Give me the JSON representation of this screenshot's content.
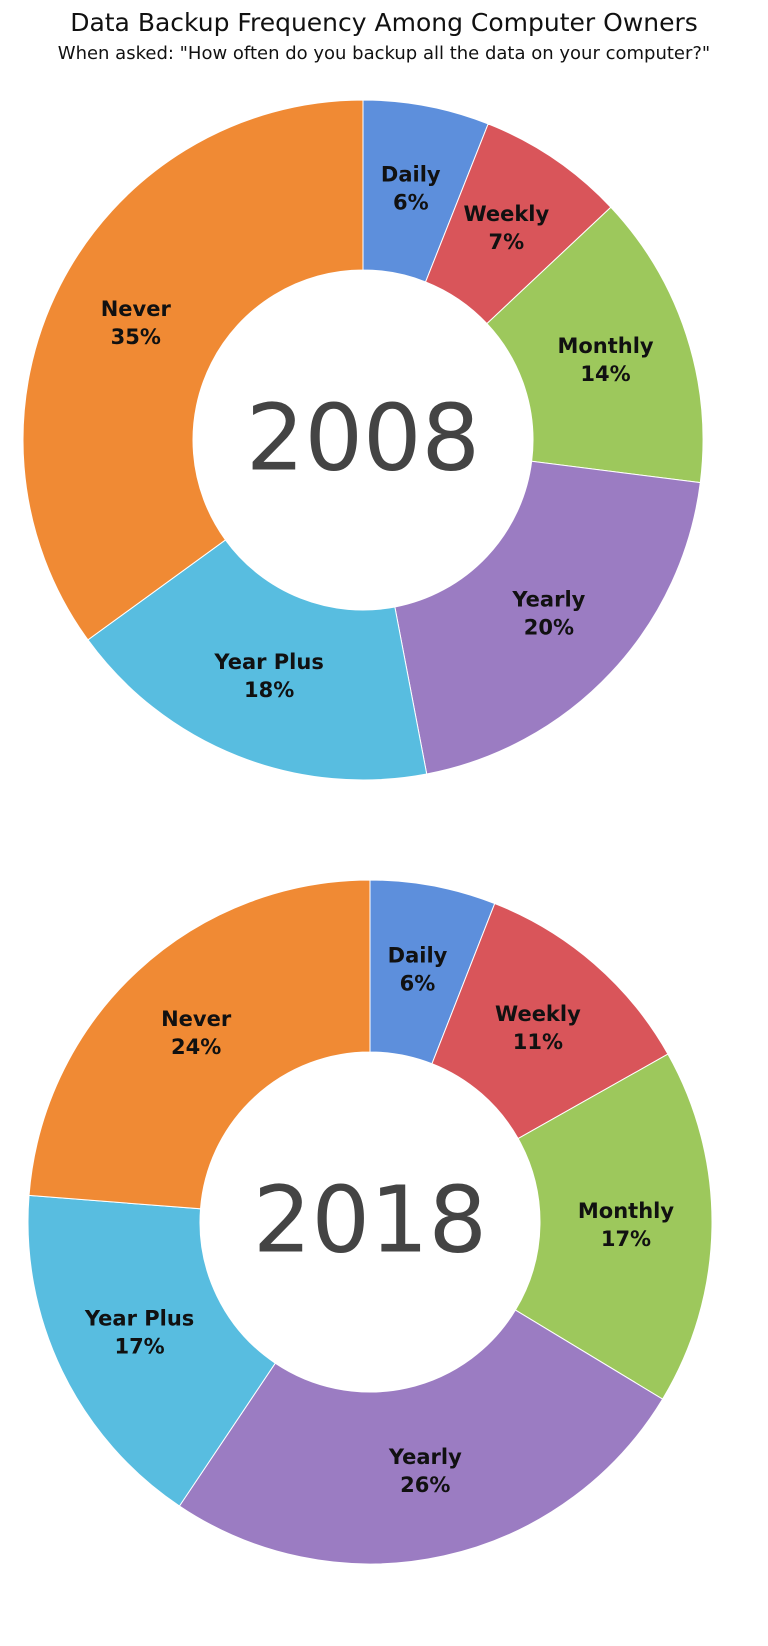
{
  "title": "Data Backup Frequency Among Computer Owners",
  "subtitle": "When asked: \"How often do you backup all the data on your computer?\"",
  "chart_data": [
    {
      "type": "donut",
      "center_label": "2008",
      "categories": [
        "Daily",
        "Weekly",
        "Monthly",
        "Yearly",
        "Year Plus",
        "Never"
      ],
      "values": [
        6,
        7,
        14,
        20,
        18,
        35
      ],
      "value_labels": [
        "6%",
        "7%",
        "14%",
        "20%",
        "18%",
        "35%"
      ],
      "colors": [
        "#5d8fdc",
        "#d9555a",
        "#9dc85c",
        "#9b7cc2",
        "#58bde0",
        "#f08a34"
      ]
    },
    {
      "type": "donut",
      "center_label": "2018",
      "categories": [
        "Daily",
        "Weekly",
        "Monthly",
        "Yearly",
        "Year Plus",
        "Never"
      ],
      "values": [
        6,
        11,
        17,
        26,
        17,
        24
      ],
      "value_labels": [
        "6%",
        "11%",
        "17%",
        "26%",
        "17%",
        "24%"
      ],
      "colors": [
        "#5d8fdc",
        "#d9555a",
        "#9dc85c",
        "#9b7cc2",
        "#58bde0",
        "#f08a34"
      ]
    }
  ]
}
